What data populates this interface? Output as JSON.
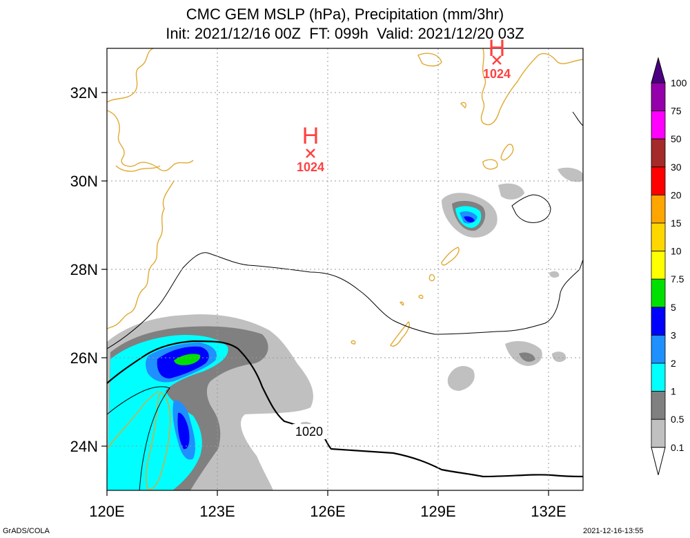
{
  "title": {
    "line1": "CMC GEM MSLP (hPa), Precipitation (mm/3hr)",
    "line2": "Init: 2021/12/16 00Z  FT: 099h  Valid: 2021/12/20 03Z"
  },
  "map": {
    "lon_ticks": [
      "120E",
      "123E",
      "126E",
      "129E",
      "132E"
    ],
    "lat_ticks": [
      "32N",
      "30N",
      "28N",
      "26N",
      "24N"
    ],
    "colors": {
      "coastline": "#e0a830",
      "isobar": "#000000",
      "high_marker": "#ff4040",
      "grid": "#999999"
    }
  },
  "pressure_centers": [
    {
      "symbol": "H",
      "value": "1024",
      "name": "high-center-west"
    },
    {
      "symbol": "H",
      "value": "1024",
      "name": "high-center-north"
    }
  ],
  "isobar_label": "1020",
  "colorbar": {
    "units_hint": "mm/3hr",
    "levels": [
      {
        "label": "100",
        "color": "#4b0082"
      },
      {
        "label": "75",
        "color": "#9400aa"
      },
      {
        "label": "50",
        "color": "#ff00ff"
      },
      {
        "label": "30",
        "color": "#a52a2a"
      },
      {
        "label": "20",
        "color": "#ff0000"
      },
      {
        "label": "15",
        "color": "#ffa500"
      },
      {
        "label": "10",
        "color": "#ffd700"
      },
      {
        "label": "7.5",
        "color": "#ffff00"
      },
      {
        "label": "5",
        "color": "#00e000"
      },
      {
        "label": "3",
        "color": "#0000ff"
      },
      {
        "label": "2",
        "color": "#1e90ff"
      },
      {
        "label": "1",
        "color": "#00ffff"
      },
      {
        "label": "0.5",
        "color": "#808080"
      },
      {
        "label": "0.1",
        "color": "#c0c0c0"
      }
    ],
    "bottom_color": "#ffffff"
  },
  "footer": {
    "left": "GrADS/COLA",
    "right": "2021-12-16-13:55"
  }
}
